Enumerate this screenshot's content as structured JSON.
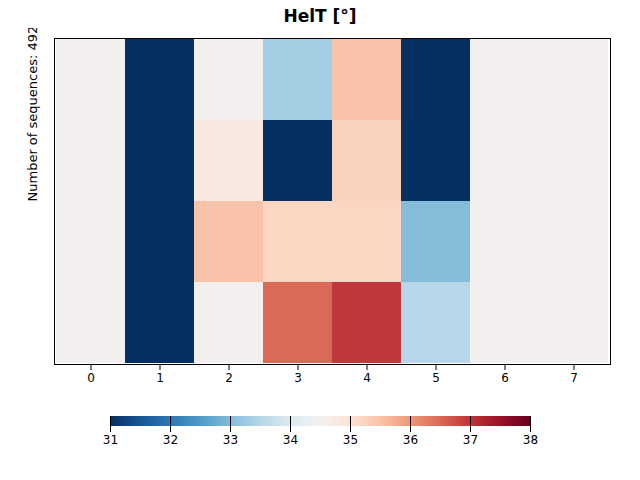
{
  "chart_data": {
    "type": "heatmap",
    "title": "HelT [°]",
    "ylabel": "Number of sequences: 492",
    "categories": [
      "0",
      "1",
      "2",
      "3",
      "4",
      "5",
      "6",
      "7"
    ],
    "cells": [
      [
        34.5,
        31.0,
        34.5,
        33.3,
        35.5,
        31.0,
        34.5,
        34.5
      ],
      [
        34.5,
        31.0,
        34.8,
        31.0,
        35.3,
        31.0,
        34.5,
        34.5
      ],
      [
        34.5,
        31.0,
        35.5,
        35.2,
        35.2,
        33.0,
        34.5,
        34.5
      ],
      [
        34.5,
        31.0,
        34.5,
        36.5,
        37.0,
        33.5,
        34.5,
        34.5
      ]
    ],
    "colorbar_range": [
      31,
      38
    ],
    "colorbar_ticks": [
      31,
      32,
      33,
      34,
      35,
      36,
      37,
      38
    ],
    "color": "RdBu_r",
    "tick_labels": "x"
  }
}
